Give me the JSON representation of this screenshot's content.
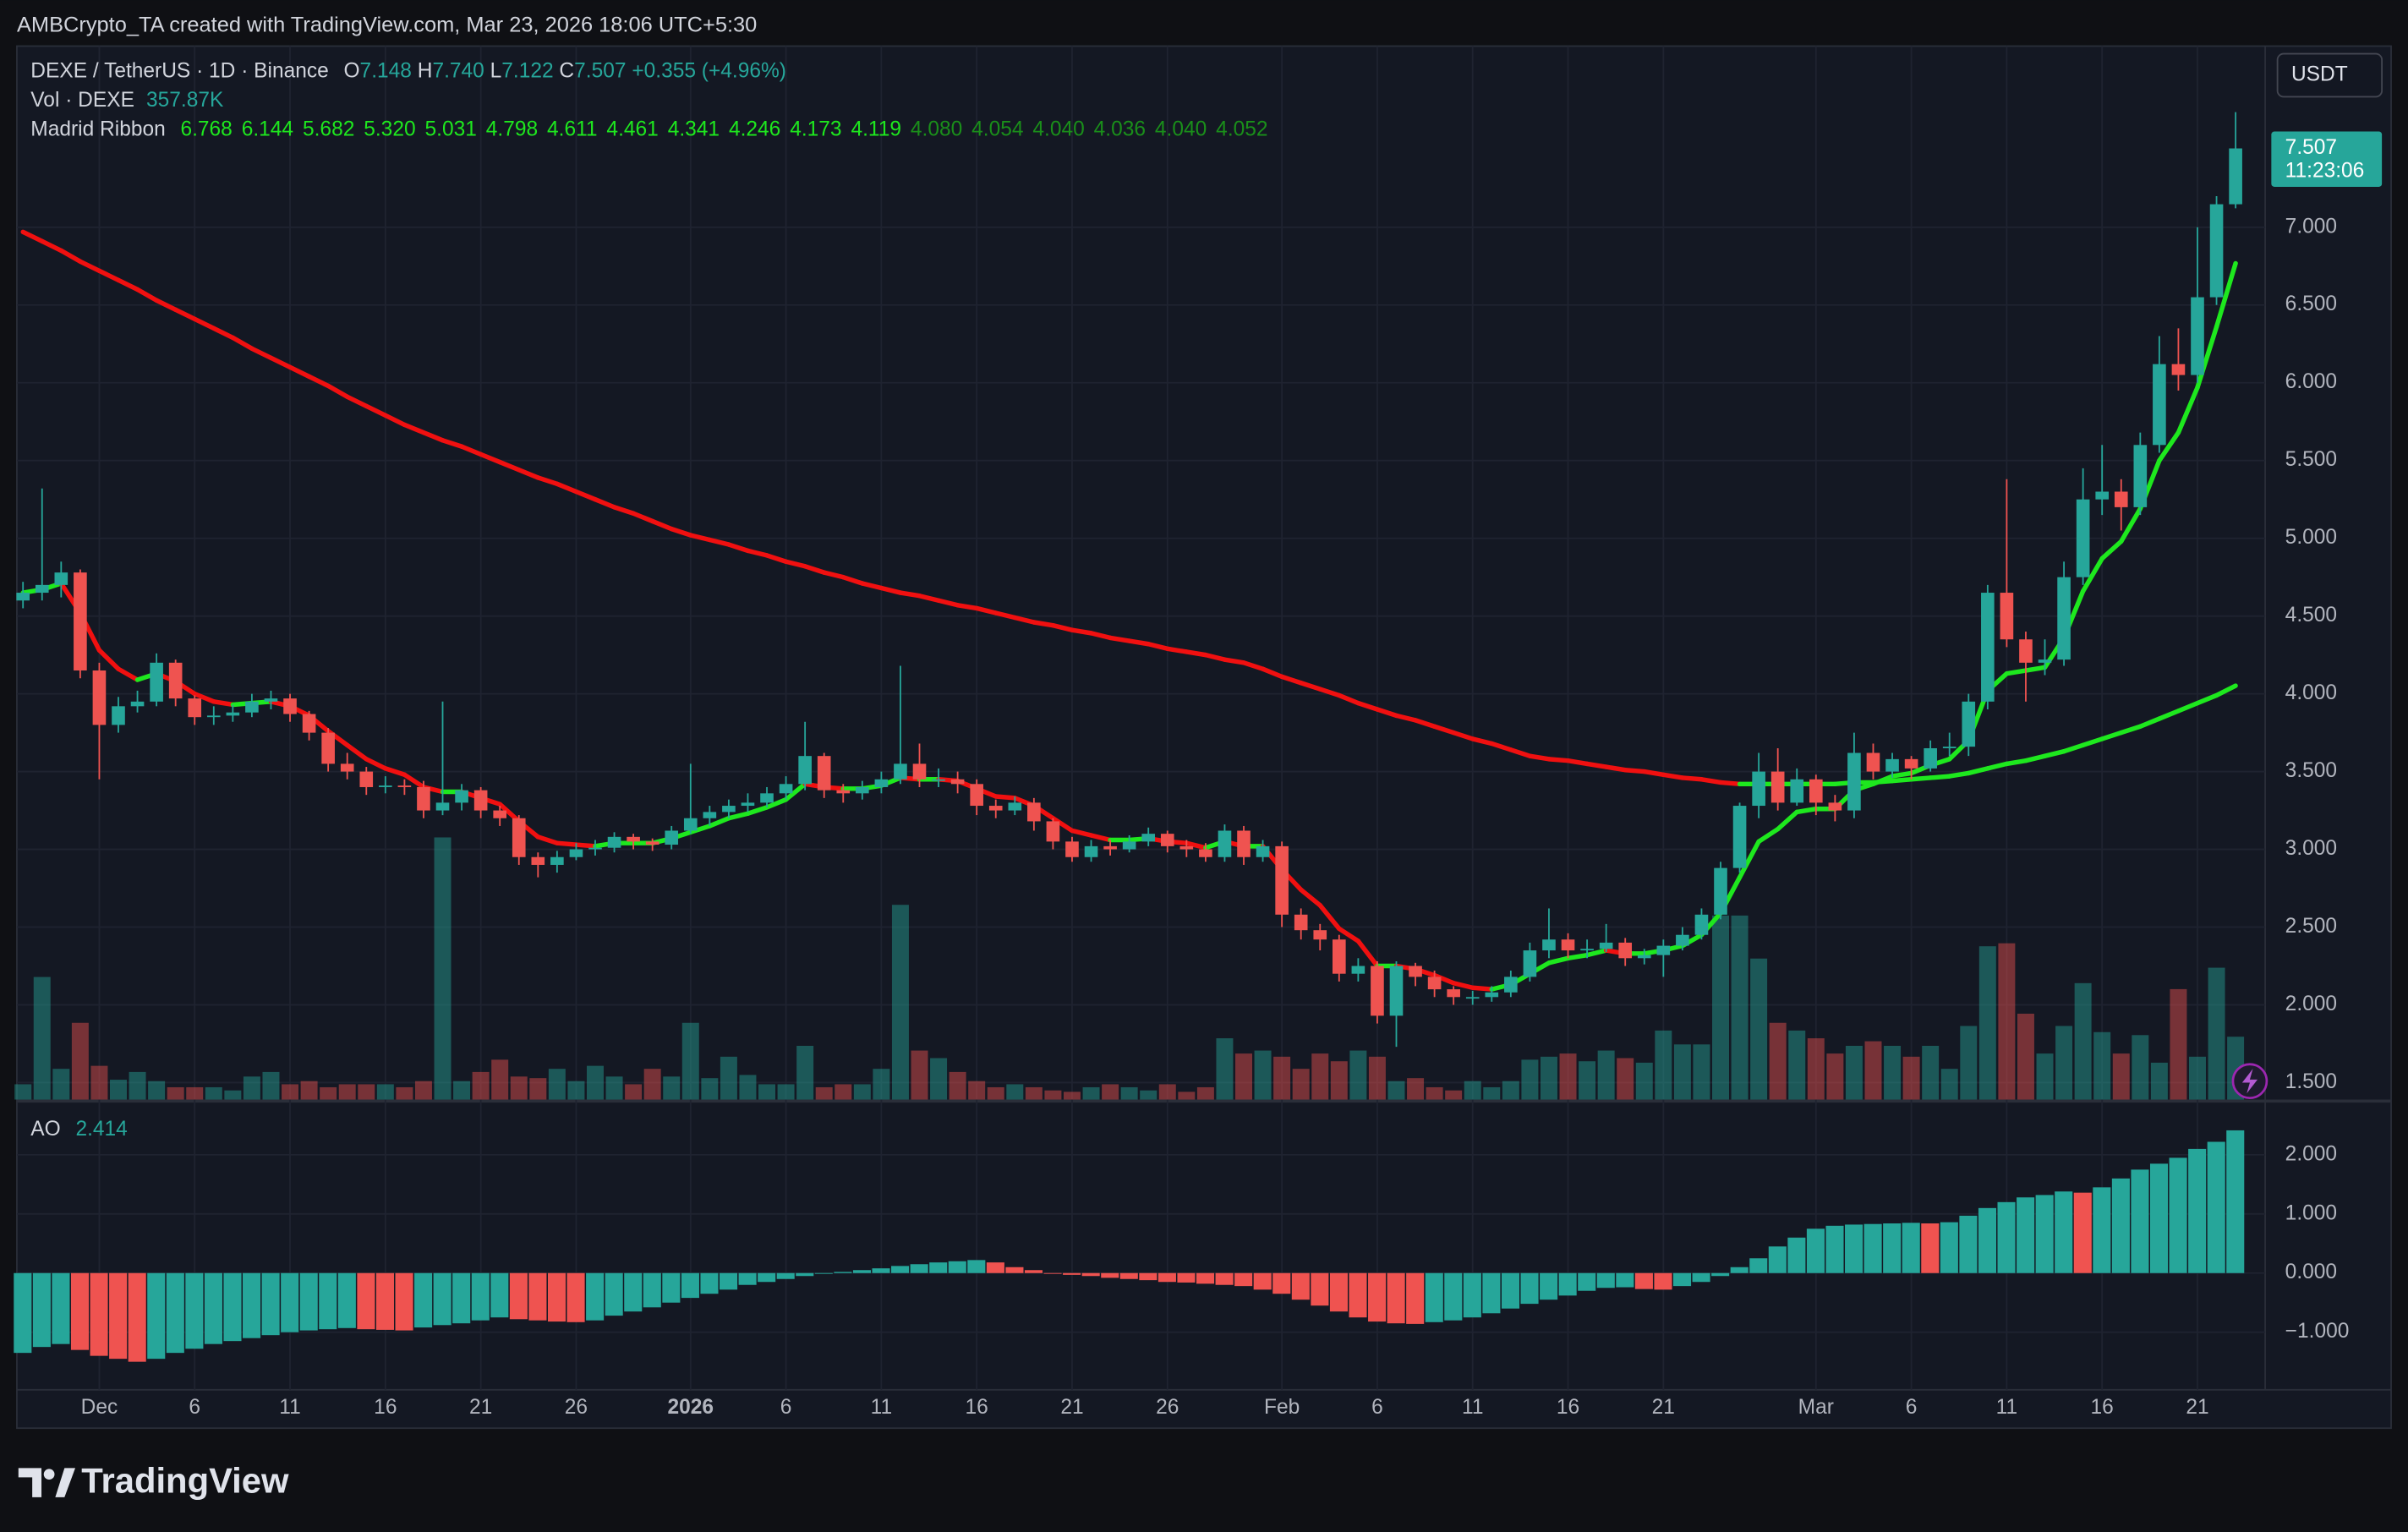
{
  "header": {
    "attribution": "AMBCrypto_TA created with TradingView.com, Mar 23, 2026 18:06 UTC+5:30"
  },
  "chart_data": {
    "type": "candlestick",
    "title": "DEXE / TetherUS · 1D · Binance",
    "legend": {
      "o_letter": "O",
      "open": {
        "value": 7.148,
        "label": "7.148"
      },
      "h_letter": "H",
      "high": {
        "value": 7.74,
        "label": "7.740"
      },
      "l_letter": "L",
      "low": {
        "value": 7.122,
        "label": "7.122"
      },
      "c_letter": "C",
      "close": {
        "value": 7.507,
        "label": "7.507"
      },
      "change": {
        "value": 0.355,
        "label": "+0.355"
      },
      "change_pct": {
        "value": 4.96,
        "label": "(+4.96%)"
      }
    },
    "currency": "USDT",
    "price_tag": {
      "value": 7.507,
      "label": "7.507"
    },
    "countdown": "11:23:06",
    "volume_title": "Vol · DEXE",
    "volume_last": {
      "value": 357870,
      "label": "357.87K"
    },
    "ribbon_title": "Madrid Ribbon",
    "ribbon_values": [
      {
        "value": 6.768,
        "label": "6.768"
      },
      {
        "value": 6.144,
        "label": "6.144"
      },
      {
        "value": 5.682,
        "label": "5.682"
      },
      {
        "value": 5.32,
        "label": "5.320"
      },
      {
        "value": 5.031,
        "label": "5.031"
      },
      {
        "value": 4.798,
        "label": "4.798"
      },
      {
        "value": 4.611,
        "label": "4.611"
      },
      {
        "value": 4.461,
        "label": "4.461"
      },
      {
        "value": 4.341,
        "label": "4.341"
      },
      {
        "value": 4.246,
        "label": "4.246"
      },
      {
        "value": 4.173,
        "label": "4.173"
      },
      {
        "value": 4.119,
        "label": "4.119"
      },
      {
        "value": 4.08,
        "label": "4.080"
      },
      {
        "value": 4.054,
        "label": "4.054"
      },
      {
        "value": 4.04,
        "label": "4.040"
      },
      {
        "value": 4.036,
        "label": "4.036"
      },
      {
        "value": 4.04,
        "label": "4.040"
      },
      {
        "value": 4.052,
        "label": "4.052"
      }
    ],
    "ribbon_colors": [
      "#1ee81e",
      "#1ee81e",
      "#1ee81e",
      "#1ee81e",
      "#1ee81e",
      "#1ee81e",
      "#1ee81e",
      "#1ee81e",
      "#1ee81e",
      "#1ee81e",
      "#1ee81e",
      "#1ee81e",
      "#1a8f1a",
      "#1a8f1a",
      "#1a8f1a",
      "#1a8f1a",
      "#1a8f1a",
      "#1a8f1a"
    ],
    "ao_title": "AO",
    "ao_last": {
      "value": 2.414,
      "label": "2.414"
    },
    "xlim": [
      -0.32,
      117.55
    ],
    "xticks": [
      {
        "value": 4,
        "label": "Dec"
      },
      {
        "value": 9,
        "label": "6"
      },
      {
        "value": 14,
        "label": "11"
      },
      {
        "value": 19,
        "label": "16"
      },
      {
        "value": 24,
        "label": "21"
      },
      {
        "value": 29,
        "label": "26"
      },
      {
        "value": 35,
        "label": "2026"
      },
      {
        "value": 40,
        "label": "6"
      },
      {
        "value": 45,
        "label": "11"
      },
      {
        "value": 50,
        "label": "16"
      },
      {
        "value": 55,
        "label": "21"
      },
      {
        "value": 60,
        "label": "26"
      },
      {
        "value": 66,
        "label": "Feb"
      },
      {
        "value": 71,
        "label": "6"
      },
      {
        "value": 76,
        "label": "11"
      },
      {
        "value": 81,
        "label": "16"
      },
      {
        "value": 86,
        "label": "21"
      },
      {
        "value": 94,
        "label": "Mar"
      },
      {
        "value": 99,
        "label": "6"
      },
      {
        "value": 104,
        "label": "11"
      },
      {
        "value": 109,
        "label": "16"
      },
      {
        "value": 114,
        "label": "21"
      }
    ],
    "ylim": [
      1.391,
      8.165
    ],
    "yticks": [
      {
        "value": 1.5,
        "label": "1.500"
      },
      {
        "value": 2,
        "label": "2.000"
      },
      {
        "value": 2.5,
        "label": "2.500"
      },
      {
        "value": 3,
        "label": "3.000"
      },
      {
        "value": 3.5,
        "label": "3.500"
      },
      {
        "value": 4,
        "label": "4.000"
      },
      {
        "value": 4.5,
        "label": "4.500"
      },
      {
        "value": 5,
        "label": "5.000"
      },
      {
        "value": 5.5,
        "label": "5.500"
      },
      {
        "value": 6,
        "label": "6.000"
      },
      {
        "value": 6.5,
        "label": "6.500"
      },
      {
        "value": 7,
        "label": "7.000"
      }
    ],
    "open": [
      4.6,
      4.65,
      4.7,
      4.78,
      4.15,
      3.8,
      3.92,
      3.95,
      4.2,
      3.97,
      3.85,
      3.86,
      3.88,
      3.95,
      3.97,
      3.87,
      3.75,
      3.55,
      3.5,
      3.4,
      3.41,
      3.4,
      3.25,
      3.3,
      3.38,
      3.25,
      3.2,
      2.95,
      2.9,
      2.95,
      3.0,
      3.01,
      3.08,
      3.05,
      3.03,
      3.12,
      3.2,
      3.24,
      3.28,
      3.3,
      3.36,
      3.42,
      3.6,
      3.38,
      3.36,
      3.4,
      3.45,
      3.55,
      3.45,
      3.45,
      3.42,
      3.28,
      3.25,
      3.3,
      3.18,
      3.05,
      2.95,
      3.02,
      3.0,
      3.05,
      3.1,
      3.02,
      3.0,
      2.95,
      3.12,
      2.95,
      3.02,
      2.58,
      2.48,
      2.42,
      2.2,
      2.25,
      1.93,
      2.25,
      2.18,
      2.1,
      2.05,
      2.05,
      2.08,
      2.18,
      2.35,
      2.42,
      2.35,
      2.36,
      2.4,
      2.3,
      2.32,
      2.38,
      2.45,
      2.58,
      2.88,
      3.28,
      3.5,
      3.3,
      3.45,
      3.3,
      3.25,
      3.62,
      3.5,
      3.58,
      3.52,
      3.65,
      3.66,
      3.95,
      4.65,
      4.35,
      4.2,
      4.22,
      4.75,
      5.25,
      5.3,
      5.2,
      5.6,
      6.12,
      6.05,
      6.55,
      7.148
    ],
    "high": [
      4.72,
      5.32,
      4.85,
      4.8,
      4.2,
      3.98,
      4.02,
      4.26,
      4.22,
      3.99,
      3.92,
      3.93,
      4.0,
      4.02,
      4.0,
      3.89,
      3.78,
      3.62,
      3.53,
      3.47,
      3.45,
      3.44,
      3.95,
      3.42,
      3.4,
      3.28,
      3.22,
      2.98,
      2.99,
      3.04,
      3.06,
      3.11,
      3.1,
      3.07,
      3.15,
      3.55,
      3.28,
      3.32,
      3.36,
      3.4,
      3.47,
      3.82,
      3.62,
      3.42,
      3.44,
      3.5,
      4.18,
      3.68,
      3.52,
      3.5,
      3.45,
      3.32,
      3.34,
      3.33,
      3.2,
      3.08,
      3.06,
      3.06,
      3.09,
      3.14,
      3.12,
      3.06,
      3.04,
      3.16,
      3.15,
      3.06,
      3.05,
      2.62,
      2.52,
      2.45,
      2.3,
      2.28,
      2.28,
      2.27,
      2.22,
      2.12,
      2.09,
      2.12,
      2.22,
      2.4,
      2.62,
      2.46,
      2.42,
      2.52,
      2.43,
      2.36,
      2.42,
      2.5,
      2.62,
      2.92,
      3.3,
      3.62,
      3.65,
      3.52,
      3.48,
      3.35,
      3.75,
      3.68,
      3.62,
      3.6,
      3.7,
      3.75,
      4.0,
      4.7,
      5.38,
      4.4,
      4.35,
      4.85,
      5.45,
      5.6,
      5.38,
      5.68,
      6.3,
      6.35,
      7.0,
      7.2,
      7.74
    ],
    "low": [
      4.55,
      4.6,
      4.62,
      4.1,
      3.45,
      3.75,
      3.88,
      3.92,
      3.92,
      3.8,
      3.8,
      3.82,
      3.85,
      3.9,
      3.82,
      3.7,
      3.5,
      3.45,
      3.35,
      3.36,
      3.35,
      3.2,
      3.22,
      3.25,
      3.2,
      3.15,
      2.9,
      2.82,
      2.85,
      2.93,
      2.96,
      2.98,
      3.0,
      2.99,
      3.0,
      3.1,
      3.15,
      3.2,
      3.24,
      3.27,
      3.32,
      3.38,
      3.33,
      3.3,
      3.32,
      3.36,
      3.42,
      3.4,
      3.4,
      3.36,
      3.22,
      3.2,
      3.22,
      3.12,
      3.0,
      2.92,
      2.92,
      2.96,
      2.98,
      3.02,
      2.98,
      2.95,
      2.92,
      2.92,
      2.9,
      2.92,
      2.5,
      2.42,
      2.35,
      2.15,
      2.15,
      1.88,
      1.73,
      2.12,
      2.05,
      2.0,
      2.0,
      2.02,
      2.05,
      2.15,
      2.3,
      2.3,
      2.3,
      2.34,
      2.25,
      2.26,
      2.18,
      2.35,
      2.42,
      2.55,
      2.85,
      3.2,
      3.25,
      3.28,
      3.22,
      3.18,
      3.2,
      3.45,
      3.46,
      3.45,
      3.5,
      3.6,
      3.6,
      3.9,
      4.3,
      3.95,
      4.12,
      4.18,
      4.7,
      5.15,
      5.05,
      5.15,
      5.55,
      5.95,
      6.0,
      6.5,
      7.122
    ],
    "close": [
      4.65,
      4.7,
      4.78,
      4.15,
      3.8,
      3.92,
      3.95,
      4.2,
      3.97,
      3.85,
      3.86,
      3.88,
      3.95,
      3.97,
      3.87,
      3.75,
      3.55,
      3.5,
      3.4,
      3.41,
      3.4,
      3.25,
      3.3,
      3.38,
      3.25,
      3.2,
      2.95,
      2.9,
      2.95,
      3.0,
      3.01,
      3.08,
      3.05,
      3.03,
      3.12,
      3.2,
      3.24,
      3.28,
      3.3,
      3.36,
      3.42,
      3.6,
      3.38,
      3.36,
      3.4,
      3.45,
      3.55,
      3.45,
      3.45,
      3.42,
      3.28,
      3.25,
      3.3,
      3.18,
      3.05,
      2.95,
      3.02,
      3.0,
      3.05,
      3.1,
      3.02,
      3.0,
      2.95,
      3.12,
      2.95,
      3.02,
      2.58,
      2.48,
      2.42,
      2.2,
      2.25,
      1.93,
      2.25,
      2.18,
      2.1,
      2.05,
      2.05,
      2.08,
      2.18,
      2.35,
      2.42,
      2.35,
      2.36,
      2.4,
      2.3,
      2.32,
      2.38,
      2.45,
      2.58,
      2.88,
      3.28,
      3.5,
      3.3,
      3.45,
      3.3,
      3.25,
      3.62,
      3.5,
      3.58,
      3.52,
      3.65,
      3.66,
      3.95,
      4.65,
      4.35,
      4.2,
      4.22,
      4.75,
      5.25,
      5.3,
      5.2,
      5.6,
      6.12,
      6.05,
      6.55,
      7.148,
      7.507
    ],
    "volume": [
      87000,
      698000,
      175000,
      437000,
      192000,
      113000,
      157000,
      105000,
      70000,
      70000,
      70000,
      52000,
      131000,
      157000,
      87000,
      105000,
      70000,
      87000,
      87000,
      87000,
      70000,
      105000,
      1493000,
      105000,
      157000,
      227000,
      131000,
      122000,
      175000,
      105000,
      192000,
      131000,
      87000,
      175000,
      131000,
      437000,
      122000,
      244000,
      140000,
      87000,
      87000,
      306000,
      70000,
      87000,
      87000,
      175000,
      1109000,
      279000,
      236000,
      157000,
      105000,
      70000,
      87000,
      70000,
      52000,
      44000,
      70000,
      87000,
      70000,
      52000,
      87000,
      44000,
      70000,
      349000,
      262000,
      279000,
      244000,
      175000,
      262000,
      218000,
      279000,
      244000,
      105000,
      122000,
      70000,
      52000,
      105000,
      70000,
      105000,
      227000,
      244000,
      262000,
      218000,
      279000,
      236000,
      210000,
      393000,
      314000,
      314000,
      1048000,
      1048000,
      803000,
      437000,
      393000,
      349000,
      262000,
      306000,
      332000,
      306000,
      244000,
      306000,
      175000,
      419000,
      873000,
      890000,
      489000,
      262000,
      419000,
      663000,
      384000,
      262000,
      367000,
      210000,
      629000,
      244000,
      751000,
      357870
    ],
    "volume_ylim": [
      0,
      6000000
    ],
    "fast_ma": [
      4.65,
      4.67,
      4.71,
      4.52,
      4.28,
      4.16,
      4.09,
      4.13,
      4.08,
      4.0,
      3.95,
      3.93,
      3.94,
      3.95,
      3.92,
      3.86,
      3.76,
      3.67,
      3.58,
      3.52,
      3.48,
      3.4,
      3.37,
      3.37,
      3.33,
      3.29,
      3.18,
      3.08,
      3.04,
      3.03,
      3.02,
      3.04,
      3.04,
      3.04,
      3.07,
      3.11,
      3.15,
      3.2,
      3.23,
      3.27,
      3.32,
      3.42,
      3.4,
      3.39,
      3.39,
      3.41,
      3.46,
      3.45,
      3.45,
      3.44,
      3.39,
      3.34,
      3.33,
      3.28,
      3.2,
      3.12,
      3.09,
      3.06,
      3.06,
      3.07,
      3.05,
      3.04,
      3.01,
      3.05,
      3.02,
      3.02,
      2.87,
      2.74,
      2.64,
      2.49,
      2.41,
      2.25,
      2.25,
      2.23,
      2.19,
      2.14,
      2.11,
      2.1,
      2.13,
      2.2,
      2.27,
      2.3,
      2.32,
      2.35,
      2.33,
      2.33,
      2.35,
      2.38,
      2.45,
      2.59,
      2.82,
      3.05,
      3.13,
      3.24,
      3.26,
      3.26,
      3.38,
      3.42,
      3.47,
      3.49,
      3.54,
      3.58,
      3.7,
      4.02,
      4.13,
      4.15,
      4.17,
      4.36,
      4.66,
      4.87,
      4.98,
      5.19,
      5.5,
      5.68,
      5.97,
      6.36,
      6.768
    ],
    "slow_ma": [
      6.97,
      6.91,
      6.85,
      6.78,
      6.72,
      6.66,
      6.6,
      6.53,
      6.47,
      6.41,
      6.35,
      6.29,
      6.22,
      6.16,
      6.1,
      6.04,
      5.98,
      5.91,
      5.85,
      5.79,
      5.73,
      5.68,
      5.63,
      5.59,
      5.54,
      5.49,
      5.44,
      5.39,
      5.35,
      5.3,
      5.25,
      5.2,
      5.16,
      5.11,
      5.06,
      5.02,
      4.99,
      4.96,
      4.92,
      4.89,
      4.85,
      4.82,
      4.78,
      4.75,
      4.71,
      4.68,
      4.65,
      4.63,
      4.6,
      4.57,
      4.55,
      4.52,
      4.49,
      4.46,
      4.44,
      4.41,
      4.39,
      4.36,
      4.34,
      4.32,
      4.29,
      4.27,
      4.25,
      4.22,
      4.2,
      4.16,
      4.11,
      4.07,
      4.03,
      3.99,
      3.94,
      3.9,
      3.86,
      3.83,
      3.79,
      3.75,
      3.71,
      3.68,
      3.64,
      3.6,
      3.58,
      3.57,
      3.55,
      3.53,
      3.51,
      3.5,
      3.48,
      3.46,
      3.45,
      3.43,
      3.42,
      3.42,
      3.42,
      3.42,
      3.42,
      3.42,
      3.43,
      3.43,
      3.44,
      3.45,
      3.46,
      3.47,
      3.49,
      3.52,
      3.55,
      3.57,
      3.6,
      3.63,
      3.67,
      3.71,
      3.75,
      3.79,
      3.84,
      3.89,
      3.94,
      3.99,
      4.052
    ],
    "ao": [
      -1.35,
      -1.25,
      -1.2,
      -1.3,
      -1.4,
      -1.45,
      -1.5,
      -1.45,
      -1.35,
      -1.28,
      -1.2,
      -1.15,
      -1.1,
      -1.05,
      -1.0,
      -0.97,
      -0.95,
      -0.93,
      -0.95,
      -0.96,
      -0.97,
      -0.92,
      -0.88,
      -0.85,
      -0.8,
      -0.75,
      -0.78,
      -0.8,
      -0.82,
      -0.83,
      -0.8,
      -0.72,
      -0.65,
      -0.58,
      -0.5,
      -0.42,
      -0.35,
      -0.28,
      -0.2,
      -0.15,
      -0.1,
      -0.05,
      -0.01,
      0.02,
      0.05,
      0.08,
      0.12,
      0.15,
      0.18,
      0.2,
      0.22,
      0.18,
      0.1,
      0.05,
      0.0,
      -0.03,
      -0.05,
      -0.08,
      -0.1,
      -0.12,
      -0.15,
      -0.16,
      -0.18,
      -0.2,
      -0.22,
      -0.28,
      -0.35,
      -0.45,
      -0.55,
      -0.65,
      -0.75,
      -0.82,
      -0.85,
      -0.86,
      -0.83,
      -0.8,
      -0.75,
      -0.68,
      -0.6,
      -0.52,
      -0.45,
      -0.38,
      -0.3,
      -0.25,
      -0.24,
      -0.27,
      -0.28,
      -0.22,
      -0.15,
      -0.05,
      0.1,
      0.25,
      0.45,
      0.6,
      0.75,
      0.8,
      0.82,
      0.83,
      0.84,
      0.85,
      0.84,
      0.86,
      0.97,
      1.1,
      1.2,
      1.28,
      1.32,
      1.38,
      1.36,
      1.45,
      1.6,
      1.75,
      1.85,
      1.95,
      2.1,
      2.22,
      2.414
    ],
    "ao_ylim": [
      -1.974,
      2.883
    ],
    "ao_yticks": [
      {
        "value": -1,
        "label": "−1.000"
      },
      {
        "value": 0,
        "label": "0.000"
      },
      {
        "value": 1,
        "label": "1.000"
      },
      {
        "value": 2,
        "label": "2.000"
      }
    ],
    "up_color": "#26a69a",
    "down_color": "#ef5350",
    "ma_up_color": "#1ee81e",
    "ma_down_color": "#f01010",
    "grid": true
  },
  "footer": {
    "brand": "TradingView"
  }
}
